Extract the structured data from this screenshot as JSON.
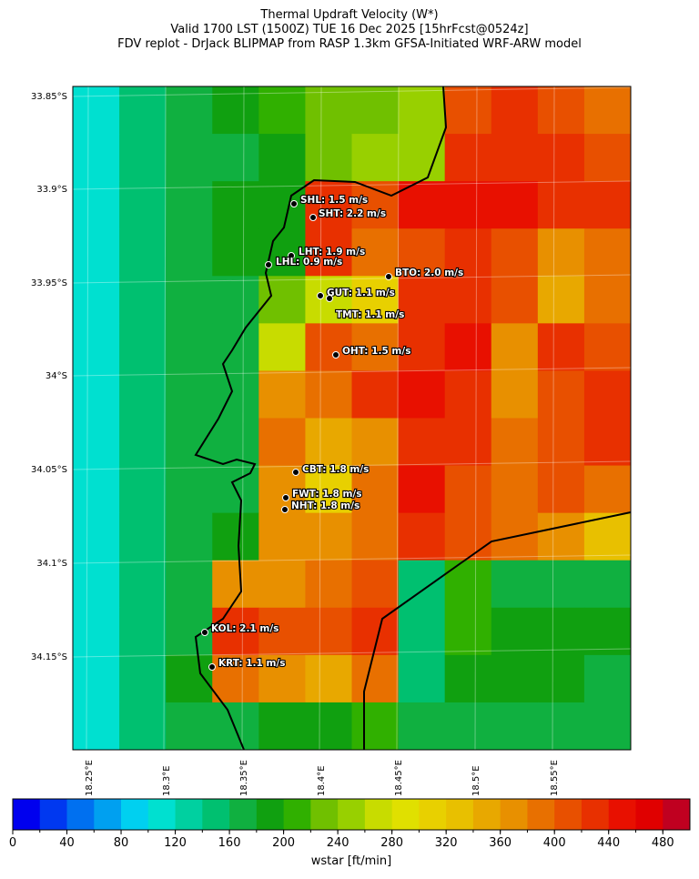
{
  "header": {
    "lines": [
      "Thermal Updraft Velocity (W*)",
      "Valid 1700 LST (1500Z) TUE 16 Dec 2025 [15hrFcst@0524z]",
      "FDV replot - DrJack BLIPMAP from RASP 1.3km GFSA-Initiated WRF-ARW model"
    ]
  },
  "map": {
    "lat_labels": [
      "33.85°S",
      "33.9°S",
      "33.95°S",
      "34°S",
      "34.05°S",
      "34.1°S",
      "34.15°S"
    ],
    "lon_labels": [
      "18.25°E",
      "18.3°E",
      "18.35°E",
      "18.4°E",
      "18.45°E",
      "18.5°E",
      "18.55°E"
    ],
    "stations": [
      "SHL: 1.5 m/s",
      "SHT: 2.2 m/s",
      "LHT: 1.9 m/s",
      "LHL: 0.9 m/s",
      "BTO: 2.0 m/s",
      "GUT: 1.1 m/s",
      "TMT: 1.1 m/s",
      "OHT: 1.5 m/s",
      "CBT: 1.8 m/s",
      "FWT: 1.8 m/s",
      "NHT: 1.8 m/s",
      "KOL: 2.1 m/s",
      "KRT: 1.1 m/s"
    ],
    "field": [
      [
        110,
        150,
        170,
        190,
        210,
        220,
        230,
        240,
        400,
        420,
        410,
        380
      ],
      [
        110,
        150,
        170,
        170,
        190,
        220,
        240,
        240,
        420,
        420,
        420,
        400
      ],
      [
        110,
        150,
        170,
        180,
        190,
        430,
        410,
        440,
        440,
        450,
        430,
        420
      ],
      [
        110,
        150,
        170,
        180,
        190,
        420,
        380,
        400,
        430,
        400,
        360,
        380
      ],
      [
        110,
        150,
        170,
        170,
        230,
        260,
        300,
        420,
        420,
        400,
        340,
        380
      ],
      [
        110,
        150,
        170,
        175,
        270,
        400,
        380,
        430,
        440,
        360,
        420,
        400
      ],
      [
        110,
        150,
        170,
        170,
        360,
        380,
        420,
        440,
        420,
        370,
        410,
        430
      ],
      [
        110,
        150,
        170,
        170,
        380,
        350,
        370,
        430,
        420,
        380,
        400,
        420
      ],
      [
        110,
        150,
        170,
        170,
        360,
        310,
        380,
        450,
        410,
        390,
        400,
        380
      ],
      [
        110,
        150,
        170,
        180,
        360,
        360,
        380,
        420,
        400,
        390,
        370,
        330
      ],
      [
        110,
        150,
        170,
        360,
        370,
        380,
        400,
        150,
        210,
        170,
        170,
        170
      ],
      [
        110,
        150,
        170,
        430,
        410,
        410,
        420,
        150,
        200,
        190,
        190,
        190
      ],
      [
        110,
        150,
        180,
        380,
        360,
        350,
        380,
        150,
        190,
        180,
        180,
        170
      ],
      [
        110,
        150,
        170,
        170,
        180,
        180,
        200,
        170,
        170,
        170,
        170,
        170
      ]
    ]
  },
  "colorbar": {
    "label": "wstar [ft/min]",
    "range": [
      0,
      500
    ],
    "ticks": [
      0,
      40,
      80,
      120,
      160,
      200,
      240,
      280,
      320,
      360,
      400,
      440,
      480
    ],
    "colors": [
      "#0000ee",
      "#0038f0",
      "#0070f0",
      "#00a0f0",
      "#00d0f0",
      "#00e0d0",
      "#00d0a0",
      "#00c070",
      "#10b040",
      "#10a010",
      "#30b000",
      "#70c000",
      "#98d000",
      "#c8dc00",
      "#e0e000",
      "#e8d000",
      "#e8c000",
      "#e8a800",
      "#e89000",
      "#e87000",
      "#e85000",
      "#e83000",
      "#e81000",
      "#e00000",
      "#c00020"
    ]
  }
}
